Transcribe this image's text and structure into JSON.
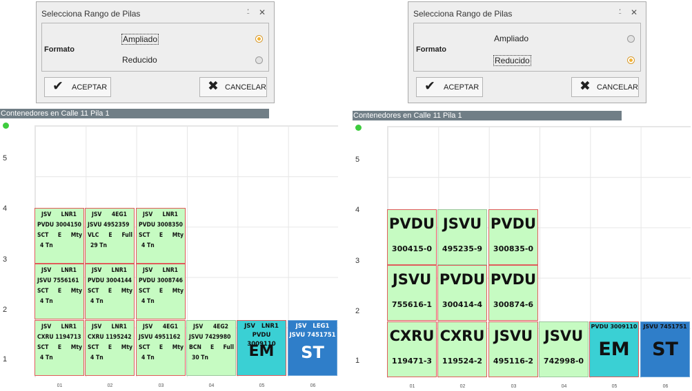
{
  "dialog": {
    "title": "Selecciona Rango de Pilas",
    "pin_icon": "pin-icon",
    "close_icon": "close-icon",
    "format_label": "Formato",
    "option_expanded": "Ampliado",
    "option_reduced": "Reducido",
    "accept_label": "ACEPTAR",
    "cancel_label": "CANCELAR"
  },
  "left_panel": {
    "selected_option": "Ampliado"
  },
  "right_panel": {
    "selected_option": "Reducido"
  },
  "header": {
    "title": "Contenedores en Calle 11 Pila 1"
  },
  "y_labels": [
    "5",
    "4",
    "3",
    "2",
    "1"
  ],
  "x_labels": [
    "01",
    "02",
    "03",
    "04",
    "05",
    "06"
  ],
  "colors": {
    "green": "#c6fbc2",
    "cyan": "#3ad0d4",
    "blue": "#2f7ec9",
    "border_red": "#e05a5a",
    "header_bar": "#707e86",
    "status_dot": "#3ecc3e"
  },
  "expanded": {
    "c1r3": {
      "l1a": "JSV",
      "l1b": "LNR1",
      "l2": "PVDU 3004150",
      "l3a": "SCT",
      "l3b": "E",
      "l3c": "Mty",
      "l4": "4 Tn"
    },
    "c2r3": {
      "l1a": "JSV",
      "l1b": "4EG1",
      "l2": "JSVU 4952359",
      "l3a": "VLC",
      "l3b": "E",
      "l3c": "Full",
      "l4": "29 Tn"
    },
    "c3r3": {
      "l1a": "JSV",
      "l1b": "LNR1",
      "l2": "PVDU 3008350",
      "l3a": "SCT",
      "l3b": "E",
      "l3c": "Mty",
      "l4": "4 Tn"
    },
    "c1r2": {
      "l1a": "JSV",
      "l1b": "LNR1",
      "l2": "JSVU 7556161",
      "l3a": "SCT",
      "l3b": "E",
      "l3c": "Mty",
      "l4": "4 Tn"
    },
    "c2r2": {
      "l1a": "JSV",
      "l1b": "LNR1",
      "l2": "PVDU 3004144",
      "l3a": "SCT",
      "l3b": "E",
      "l3c": "Mty",
      "l4": "4 Tn"
    },
    "c3r2": {
      "l1a": "JSV",
      "l1b": "LNR1",
      "l2": "PVDU 3008746",
      "l3a": "SCT",
      "l3b": "E",
      "l3c": "Mty",
      "l4": "4 Tn"
    },
    "c1r1": {
      "l1a": "JSV",
      "l1b": "LNR1",
      "l2": "CXRU 1194713",
      "l3a": "SCT",
      "l3b": "E",
      "l3c": "Mty",
      "l4": "4 Tn"
    },
    "c2r1": {
      "l1a": "JSV",
      "l1b": "LNR1",
      "l2": "CXRU 1195242",
      "l3a": "SCT",
      "l3b": "E",
      "l3c": "Mty",
      "l4": "4 Tn"
    },
    "c3r1": {
      "l1a": "JSV",
      "l1b": "4EG1",
      "l2": "JSVU 4951162",
      "l3a": "SCT",
      "l3b": "E",
      "l3c": "Mty",
      "l4": "4 Tn"
    },
    "c4r1": {
      "l1a": "JSV",
      "l1b": "4EG2",
      "l2": "JSVU 7429980",
      "l3a": "BCN",
      "l3b": "E",
      "l3c": "Full",
      "l4": "30 Tn"
    },
    "c5r1": {
      "l1": "JSV   LNR1",
      "l2": "PVDU 3009110",
      "big": "EM"
    },
    "c6r1": {
      "l1": "JSV   LEG1",
      "l2": "JSVU 7451751",
      "big": "ST"
    }
  },
  "reduced": {
    "c1r3": {
      "prefix": "PVDU",
      "num": "300415-0"
    },
    "c2r3": {
      "prefix": "JSVU",
      "num": "495235-9"
    },
    "c3r3": {
      "prefix": "PVDU",
      "num": "300835-0"
    },
    "c1r2": {
      "prefix": "JSVU",
      "num": "755616-1"
    },
    "c2r2": {
      "prefix": "PVDU",
      "num": "300414-4"
    },
    "c3r2": {
      "prefix": "PVDU",
      "num": "300874-6"
    },
    "c1r1": {
      "prefix": "CXRU",
      "num": "119471-3"
    },
    "c2r1": {
      "prefix": "CXRU",
      "num": "119524-2"
    },
    "c3r1": {
      "prefix": "JSVU",
      "num": "495116-2"
    },
    "c4r1": {
      "prefix": "JSVU",
      "num": "742998-0"
    },
    "c5r1": {
      "top": "PVDU 3009110",
      "big": "EM"
    },
    "c6r1": {
      "top": "JSVU 7451751",
      "big": "ST"
    }
  }
}
